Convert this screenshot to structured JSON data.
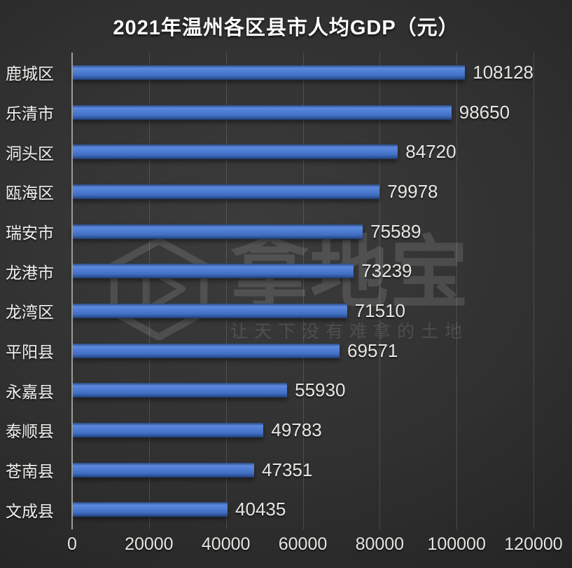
{
  "title": "2021年温州各区县市人均GDP（元）",
  "chart_data": {
    "type": "bar",
    "orientation": "horizontal",
    "title": "2021年温州各区县市人均GDP（元）",
    "categories": [
      "鹿城区",
      "乐清市",
      "洞头区",
      "瓯海区",
      "瑞安市",
      "龙港市",
      "龙湾区",
      "平阳县",
      "永嘉县",
      "泰顺县",
      "苍南县",
      "文成县"
    ],
    "values": [
      108128,
      98650,
      84720,
      79978,
      75589,
      73239,
      71510,
      69571,
      55930,
      49783,
      47351,
      40435
    ],
    "value_labels": [
      "108128",
      "98650",
      "84720",
      "79978",
      "75589",
      "73239",
      "71510",
      "69571",
      "55930",
      "49783",
      "47351",
      "40435"
    ],
    "xlabel": "",
    "ylabel": "",
    "xlim": [
      0,
      120000
    ],
    "x_ticks": [
      "0",
      "20000",
      "40000",
      "60000",
      "80000",
      "100000",
      "120000"
    ],
    "grid": true,
    "legend": false,
    "bar_color": "#4577cd",
    "background": "#303030",
    "text_color": "#f0efec"
  },
  "watermark": {
    "logo_icon": "hexagon-play-icon",
    "brand": "拿地宝",
    "slogan": "让天下没有难拿的土地"
  }
}
